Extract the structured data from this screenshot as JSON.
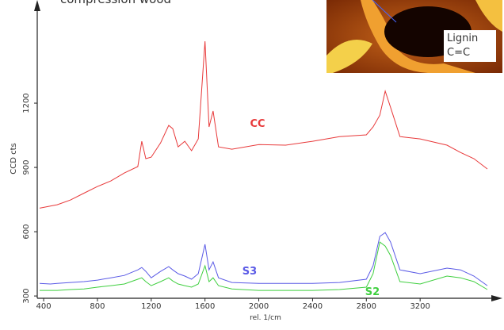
{
  "chart_data": {
    "type": "line",
    "title": "compression wood",
    "x_label": "rel. 1/cm",
    "y_label": "CCD cts",
    "inset_label": [
      "Lignin",
      "C=C"
    ],
    "x": [
      370,
      450,
      500,
      600,
      700,
      800,
      900,
      1000,
      1100,
      1130,
      1160,
      1200,
      1270,
      1330,
      1360,
      1400,
      1450,
      1500,
      1550,
      1600,
      1630,
      1660,
      1700,
      1800,
      2000,
      2200,
      2400,
      2600,
      2800,
      2850,
      2900,
      2940,
      2980,
      3050,
      3200,
      3400,
      3500,
      3600,
      3700
    ],
    "series": [
      {
        "name": "CC",
        "color": "#e8393a",
        "values": [
          710,
          720,
          726,
          748,
          780,
          811,
          837,
          874,
          904,
          1022,
          941,
          948,
          1015,
          1096,
          1081,
          996,
          1022,
          978,
          1033,
          1489,
          1089,
          1163,
          996,
          985,
          1007,
          1004,
          1022,
          1044,
          1052,
          1089,
          1144,
          1256,
          1181,
          1044,
          1033,
          1004,
          970,
          941,
          893
        ]
      },
      {
        "name": "S3",
        "color": "#5a5ae6",
        "values": [
          359,
          356,
          359,
          363,
          367,
          374,
          385,
          396,
          422,
          433,
          415,
          385,
          415,
          437,
          422,
          404,
          393,
          378,
          404,
          541,
          422,
          459,
          385,
          363,
          359,
          359,
          359,
          363,
          378,
          441,
          578,
          596,
          552,
          422,
          404,
          430,
          422,
          393,
          348
        ]
      },
      {
        "name": "S2",
        "color": "#3fcf3f",
        "values": [
          326,
          326,
          326,
          330,
          333,
          341,
          348,
          356,
          378,
          385,
          367,
          348,
          367,
          385,
          370,
          356,
          348,
          341,
          356,
          441,
          367,
          385,
          348,
          333,
          326,
          326,
          326,
          330,
          341,
          404,
          552,
          533,
          489,
          367,
          356,
          393,
          385,
          367,
          330
        ]
      }
    ],
    "xlim": [
      370,
      3700
    ],
    "ylim": [
      293,
      1663
    ],
    "xticks": [
      400,
      800,
      1200,
      1600,
      2000,
      2400,
      2800,
      3200
    ],
    "yticks": [
      300,
      600,
      900,
      1200
    ]
  }
}
